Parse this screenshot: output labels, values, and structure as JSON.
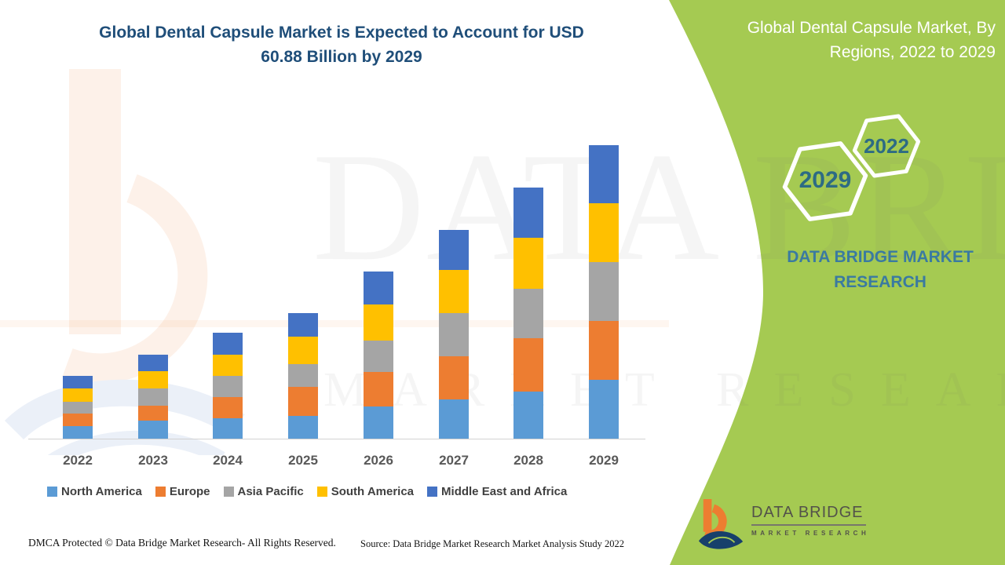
{
  "title_lines": [
    "Global Dental Capsule Market is Expected to Account for USD",
    "60.88 Billion by 2029"
  ],
  "panel": {
    "heading_lines": [
      "Global Dental Capsule Market, By",
      "Regions, 2022 to 2029"
    ],
    "hexagons": [
      "2022",
      "2029"
    ],
    "brand_lines": [
      "DATA BRIDGE MARKET",
      "RESEARCH"
    ],
    "accent_green": "#a5ca52",
    "hex_text_color": "#2d6b84",
    "brand_text_color": "#3a7aa1"
  },
  "logo": {
    "name_line": "DATA BRIDGE",
    "tagline": "MARKET RESEARCH"
  },
  "watermark": {
    "line1": "DATA BRIDGE",
    "line2": "MARKET RESEARCH"
  },
  "footer": {
    "dmca": "DMCA Protected © Data Bridge Market Research- All Rights Reserved.",
    "source": "Source: Data Bridge Market Research Market Analysis Study 2022"
  },
  "chart_data": {
    "type": "bar",
    "stacked": true,
    "title": "Global Dental Capsule Market is Expected to Account for USD 60.88 Billion by 2029",
    "unit": "USD Billion",
    "categories": [
      "2022",
      "2023",
      "2024",
      "2025",
      "2026",
      "2027",
      "2028",
      "2029"
    ],
    "series": [
      {
        "name": "North America",
        "color": "#5B9BD5",
        "values": [
          2.6,
          3.7,
          4.2,
          4.7,
          6.7,
          8.1,
          9.8,
          12.2
        ]
      },
      {
        "name": "Europe",
        "color": "#ED7D31",
        "values": [
          2.6,
          3.1,
          4.4,
          6.0,
          7.2,
          8.9,
          11.1,
          12.2
        ]
      },
      {
        "name": "Asia Pacific",
        "color": "#A5A5A5",
        "values": [
          2.4,
          3.6,
          4.4,
          4.7,
          6.5,
          8.9,
          10.2,
          12.2
        ]
      },
      {
        "name": "South America",
        "color": "#FFC000",
        "values": [
          2.8,
          3.6,
          4.4,
          5.7,
          7.5,
          8.9,
          10.6,
          12.2
        ]
      },
      {
        "name": "Middle East and Africa",
        "color": "#4472C4",
        "values": [
          2.6,
          3.4,
          4.6,
          4.9,
          6.8,
          8.3,
          10.4,
          12.08
        ]
      }
    ],
    "totals_by_year": [
      13.0,
      17.4,
      22.0,
      26.0,
      34.7,
      43.1,
      52.1,
      60.88
    ],
    "ylim": [
      0,
      60.88
    ],
    "grid": false,
    "y_axis_visible": false,
    "legend_position": "bottom"
  }
}
